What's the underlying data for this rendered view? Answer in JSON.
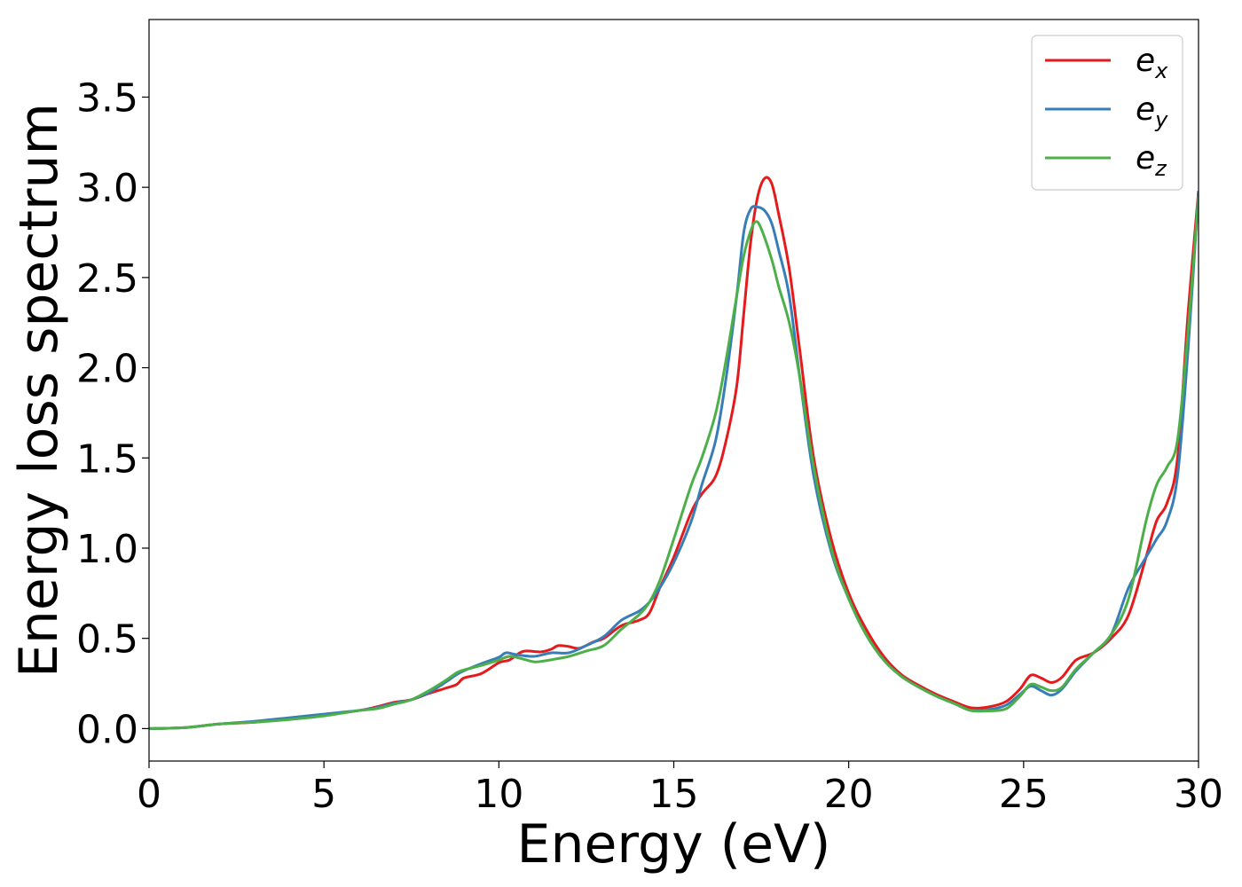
{
  "chart_data": {
    "type": "line",
    "title": "",
    "xlabel": "Energy (eV)",
    "ylabel": "Energy loss spectrum",
    "xlim": [
      0,
      30
    ],
    "ylim": [
      -0.18,
      3.93
    ],
    "xticks": [
      0,
      5,
      10,
      15,
      20,
      25,
      30
    ],
    "yticks": [
      0.0,
      0.5,
      1.0,
      1.5,
      2.0,
      2.5,
      3.0,
      3.5
    ],
    "xtick_labels": [
      "0",
      "5",
      "10",
      "15",
      "20",
      "25",
      "30"
    ],
    "ytick_labels": [
      "0.0",
      "0.5",
      "1.0",
      "1.5",
      "2.0",
      "2.5",
      "3.0",
      "3.5"
    ],
    "grid": false,
    "legend_position": "top-right",
    "series": [
      {
        "name": "e",
        "subscript": "x",
        "color": "#e41a1c",
        "points": [
          [
            0,
            0
          ],
          [
            1,
            0.005
          ],
          [
            2,
            0.025
          ],
          [
            3,
            0.035
          ],
          [
            4,
            0.055
          ],
          [
            5,
            0.075
          ],
          [
            6,
            0.1
          ],
          [
            6.5,
            0.12
          ],
          [
            7,
            0.145
          ],
          [
            7.5,
            0.16
          ],
          [
            8,
            0.195
          ],
          [
            8.5,
            0.225
          ],
          [
            8.8,
            0.245
          ],
          [
            9,
            0.28
          ],
          [
            9.5,
            0.305
          ],
          [
            10,
            0.365
          ],
          [
            10.3,
            0.38
          ],
          [
            10.6,
            0.42
          ],
          [
            10.8,
            0.43
          ],
          [
            11.2,
            0.425
          ],
          [
            11.5,
            0.44
          ],
          [
            11.7,
            0.46
          ],
          [
            12,
            0.455
          ],
          [
            12.3,
            0.445
          ],
          [
            12.7,
            0.48
          ],
          [
            13,
            0.5
          ],
          [
            13.5,
            0.57
          ],
          [
            14,
            0.6
          ],
          [
            14.3,
            0.64
          ],
          [
            14.6,
            0.78
          ],
          [
            15,
            0.95
          ],
          [
            15.5,
            1.2
          ],
          [
            15.8,
            1.3
          ],
          [
            16.2,
            1.4
          ],
          [
            16.5,
            1.6
          ],
          [
            16.8,
            1.9
          ],
          [
            17.0,
            2.3
          ],
          [
            17.2,
            2.7
          ],
          [
            17.4,
            2.95
          ],
          [
            17.6,
            3.05
          ],
          [
            17.8,
            3.02
          ],
          [
            18.0,
            2.85
          ],
          [
            18.3,
            2.55
          ],
          [
            18.6,
            2.1
          ],
          [
            19,
            1.5
          ],
          [
            19.5,
            1.05
          ],
          [
            20,
            0.75
          ],
          [
            20.5,
            0.55
          ],
          [
            21,
            0.4
          ],
          [
            21.5,
            0.3
          ],
          [
            22,
            0.24
          ],
          [
            22.5,
            0.19
          ],
          [
            23,
            0.15
          ],
          [
            23.5,
            0.115
          ],
          [
            24,
            0.12
          ],
          [
            24.5,
            0.15
          ],
          [
            24.9,
            0.22
          ],
          [
            25.2,
            0.295
          ],
          [
            25.5,
            0.28
          ],
          [
            25.8,
            0.255
          ],
          [
            26.1,
            0.285
          ],
          [
            26.5,
            0.38
          ],
          [
            27,
            0.42
          ],
          [
            27.5,
            0.5
          ],
          [
            28,
            0.63
          ],
          [
            28.5,
            0.95
          ],
          [
            28.8,
            1.15
          ],
          [
            29.1,
            1.25
          ],
          [
            29.4,
            1.5
          ],
          [
            29.7,
            2.3
          ],
          [
            30,
            2.98
          ]
        ]
      },
      {
        "name": "e",
        "subscript": "y",
        "color": "#377eb8",
        "points": [
          [
            0,
            0
          ],
          [
            1,
            0.005
          ],
          [
            2,
            0.025
          ],
          [
            3,
            0.04
          ],
          [
            4,
            0.06
          ],
          [
            5,
            0.08
          ],
          [
            6,
            0.1
          ],
          [
            6.5,
            0.115
          ],
          [
            7,
            0.14
          ],
          [
            7.5,
            0.16
          ],
          [
            8,
            0.2
          ],
          [
            8.5,
            0.26
          ],
          [
            8.8,
            0.3
          ],
          [
            9,
            0.32
          ],
          [
            9.5,
            0.36
          ],
          [
            10,
            0.395
          ],
          [
            10.2,
            0.42
          ],
          [
            10.5,
            0.41
          ],
          [
            11,
            0.4
          ],
          [
            11.5,
            0.42
          ],
          [
            12,
            0.42
          ],
          [
            12.5,
            0.46
          ],
          [
            13,
            0.51
          ],
          [
            13.5,
            0.6
          ],
          [
            14,
            0.65
          ],
          [
            14.3,
            0.7
          ],
          [
            14.6,
            0.78
          ],
          [
            15,
            0.92
          ],
          [
            15.5,
            1.15
          ],
          [
            15.8,
            1.35
          ],
          [
            16.2,
            1.6
          ],
          [
            16.5,
            1.95
          ],
          [
            16.8,
            2.4
          ],
          [
            17.0,
            2.75
          ],
          [
            17.2,
            2.88
          ],
          [
            17.4,
            2.89
          ],
          [
            17.6,
            2.87
          ],
          [
            17.8,
            2.8
          ],
          [
            18.0,
            2.65
          ],
          [
            18.3,
            2.4
          ],
          [
            18.6,
            1.95
          ],
          [
            19,
            1.4
          ],
          [
            19.5,
            0.98
          ],
          [
            20,
            0.72
          ],
          [
            20.5,
            0.52
          ],
          [
            21,
            0.38
          ],
          [
            21.5,
            0.29
          ],
          [
            22,
            0.23
          ],
          [
            22.5,
            0.18
          ],
          [
            23,
            0.14
          ],
          [
            23.5,
            0.1
          ],
          [
            24,
            0.105
          ],
          [
            24.5,
            0.13
          ],
          [
            24.9,
            0.19
          ],
          [
            25.2,
            0.235
          ],
          [
            25.5,
            0.21
          ],
          [
            25.8,
            0.185
          ],
          [
            26.1,
            0.22
          ],
          [
            26.5,
            0.32
          ],
          [
            27,
            0.42
          ],
          [
            27.5,
            0.52
          ],
          [
            28,
            0.78
          ],
          [
            28.5,
            0.95
          ],
          [
            28.8,
            1.05
          ],
          [
            29.1,
            1.15
          ],
          [
            29.4,
            1.4
          ],
          [
            29.7,
            2.1
          ],
          [
            30,
            2.98
          ]
        ]
      },
      {
        "name": "e",
        "subscript": "z",
        "color": "#4daf4a",
        "points": [
          [
            0,
            0
          ],
          [
            1,
            0.005
          ],
          [
            2,
            0.025
          ],
          [
            3,
            0.035
          ],
          [
            4,
            0.05
          ],
          [
            5,
            0.07
          ],
          [
            6,
            0.1
          ],
          [
            6.5,
            0.11
          ],
          [
            7,
            0.135
          ],
          [
            7.5,
            0.16
          ],
          [
            8,
            0.21
          ],
          [
            8.5,
            0.27
          ],
          [
            8.8,
            0.31
          ],
          [
            9,
            0.325
          ],
          [
            9.5,
            0.35
          ],
          [
            10,
            0.38
          ],
          [
            10.3,
            0.4
          ],
          [
            10.6,
            0.39
          ],
          [
            11,
            0.37
          ],
          [
            11.3,
            0.375
          ],
          [
            11.6,
            0.385
          ],
          [
            12,
            0.4
          ],
          [
            12.5,
            0.43
          ],
          [
            13,
            0.46
          ],
          [
            13.5,
            0.55
          ],
          [
            14,
            0.63
          ],
          [
            14.3,
            0.7
          ],
          [
            14.6,
            0.82
          ],
          [
            15,
            1.05
          ],
          [
            15.5,
            1.35
          ],
          [
            15.8,
            1.5
          ],
          [
            16.2,
            1.75
          ],
          [
            16.5,
            2.05
          ],
          [
            16.8,
            2.4
          ],
          [
            17.0,
            2.62
          ],
          [
            17.2,
            2.76
          ],
          [
            17.35,
            2.81
          ],
          [
            17.5,
            2.77
          ],
          [
            17.8,
            2.6
          ],
          [
            18.0,
            2.45
          ],
          [
            18.3,
            2.25
          ],
          [
            18.6,
            1.95
          ],
          [
            19,
            1.45
          ],
          [
            19.5,
            1.0
          ],
          [
            20,
            0.72
          ],
          [
            20.5,
            0.52
          ],
          [
            21,
            0.38
          ],
          [
            21.5,
            0.29
          ],
          [
            22,
            0.23
          ],
          [
            22.5,
            0.18
          ],
          [
            23,
            0.14
          ],
          [
            23.5,
            0.1
          ],
          [
            24,
            0.098
          ],
          [
            24.5,
            0.11
          ],
          [
            24.9,
            0.18
          ],
          [
            25.2,
            0.245
          ],
          [
            25.5,
            0.23
          ],
          [
            25.8,
            0.21
          ],
          [
            26.1,
            0.23
          ],
          [
            26.5,
            0.33
          ],
          [
            27,
            0.42
          ],
          [
            27.5,
            0.52
          ],
          [
            28,
            0.72
          ],
          [
            28.5,
            1.15
          ],
          [
            28.8,
            1.35
          ],
          [
            29.1,
            1.45
          ],
          [
            29.4,
            1.6
          ],
          [
            29.7,
            2.2
          ],
          [
            30,
            2.95
          ]
        ]
      }
    ]
  }
}
